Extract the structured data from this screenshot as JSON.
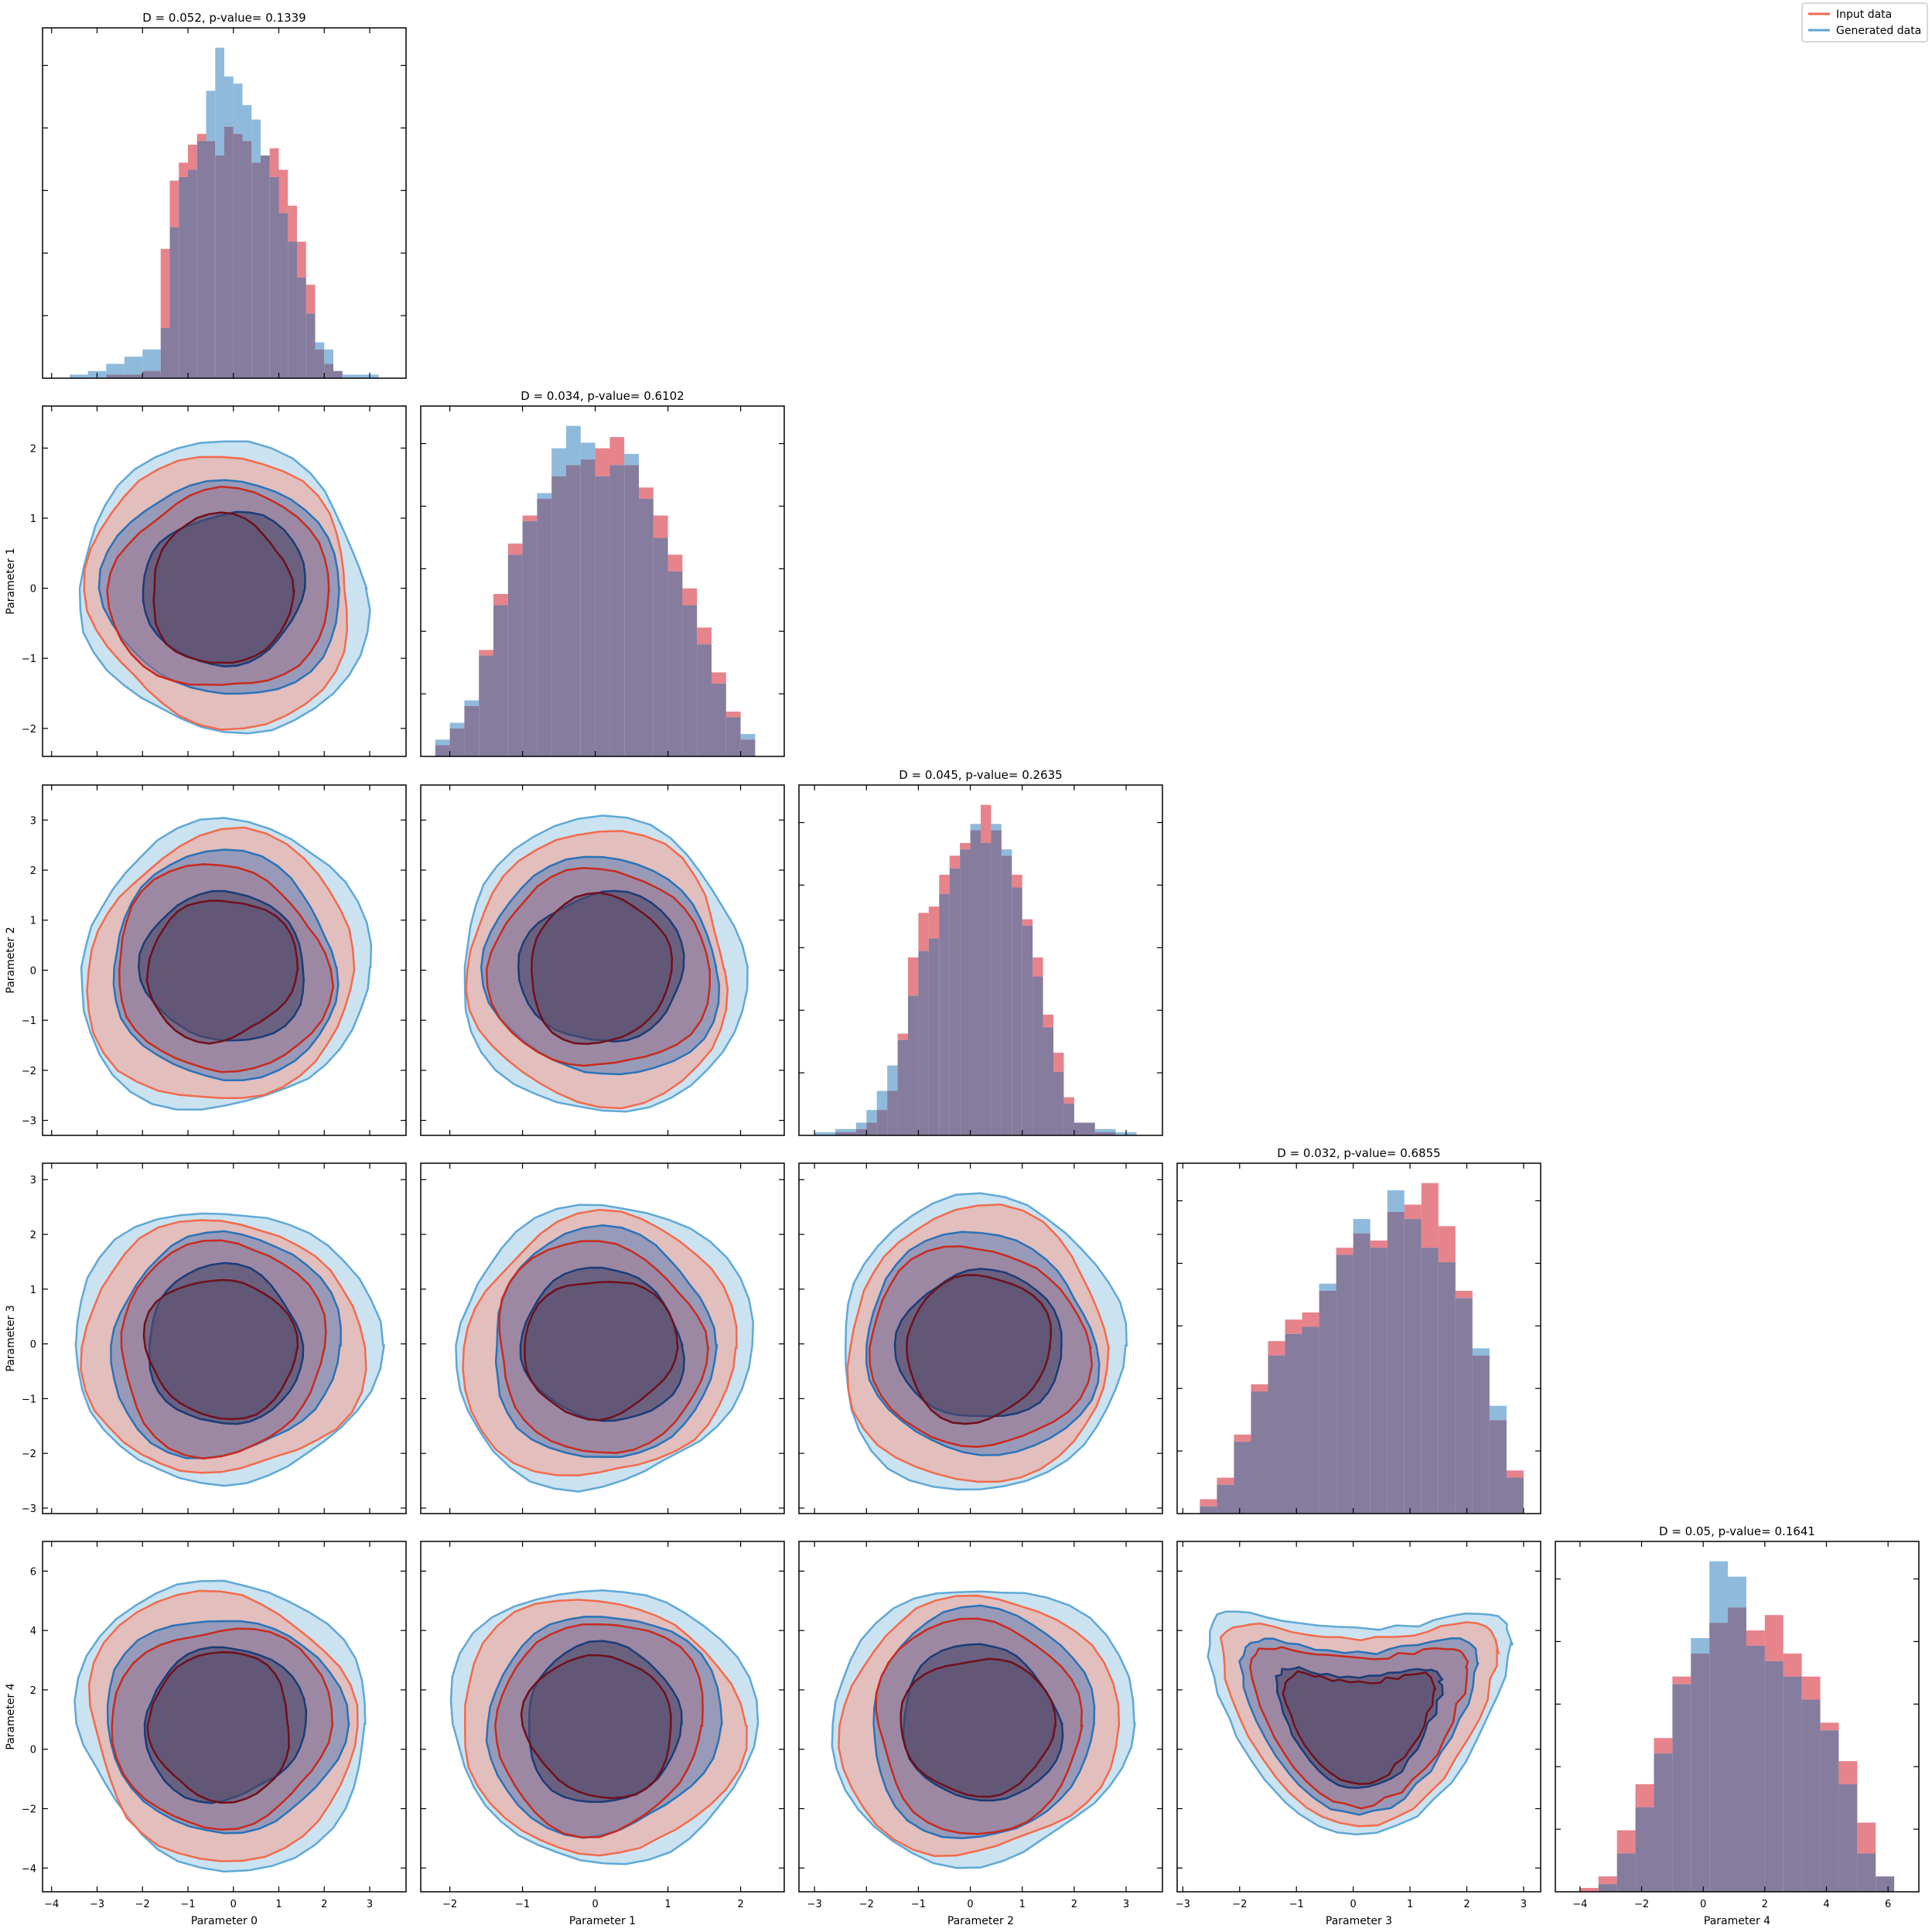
{
  "legend": [
    {
      "label": "Input data",
      "color": "#ee6a50"
    },
    {
      "label": "Generated data",
      "color": "#5fa4d4"
    }
  ],
  "colors": {
    "input_fill": "#e0606a",
    "generated_fill": "#6fa6d2",
    "overlap_fill": "#857c9e",
    "input_outer_line": "#f26b4c",
    "input_mid_line": "#c82a1e",
    "input_inner_line": "#70101c",
    "generated_outer_line": "#5fa8d6",
    "generated_mid_line": "#2a72b8",
    "generated_inner_line": "#1a3c78",
    "generated_level_fills": [
      "#b9d8ec",
      "#7e8fb8",
      "#5a5475"
    ],
    "input_level_fills": [
      "#f6a090",
      "#a07890",
      "#5b5070"
    ]
  },
  "chart_data": {
    "type": "corner",
    "parameters": [
      "Parameter 0",
      "Parameter 1",
      "Parameter 2",
      "Parameter 3",
      "Parameter 4"
    ],
    "ranges": [
      [
        -4.2,
        3.8
      ],
      [
        -2.4,
        2.6
      ],
      [
        -3.3,
        3.7
      ],
      [
        -3.1,
        3.3
      ],
      [
        -4.8,
        7.0
      ]
    ],
    "ticks": [
      [
        -4,
        -3,
        -2,
        -1,
        0,
        1,
        2,
        3
      ],
      [
        -2,
        -1,
        0,
        1,
        2
      ],
      [
        -3,
        -2,
        -1,
        0,
        1,
        2,
        3
      ],
      [
        -3,
        -2,
        -1,
        0,
        1,
        2,
        3
      ],
      [
        -4,
        -2,
        0,
        2,
        4,
        6
      ]
    ],
    "tick_labels": [
      [
        "−4",
        "−3",
        "−2",
        "−1",
        "0",
        "1",
        "2",
        "3"
      ],
      [
        "−2",
        "−1",
        "0",
        "1",
        "2"
      ],
      [
        "−3",
        "−2",
        "−1",
        "0",
        "1",
        "2",
        "3"
      ],
      [
        "−3",
        "−2",
        "−1",
        "0",
        "1",
        "2",
        "3"
      ],
      [
        "−4",
        "−2",
        "0",
        "2",
        "4",
        "6"
      ]
    ],
    "diagonal_titles": [
      "D = 0.052, p-value= 0.1339",
      "D = 0.034, p-value= 0.6102",
      "D = 0.045, p-value= 0.2635",
      "D = 0.032, p-value= 0.6855",
      "D = 0.05, p-value= 0.1641"
    ],
    "histograms": [
      {
        "bin_edges": [
          -4.0,
          -3.6,
          -3.2,
          -2.8,
          -2.4,
          -2.0,
          -1.6,
          -1.4,
          -1.2,
          -1.0,
          -0.8,
          -0.6,
          -0.4,
          -0.2,
          0.0,
          0.2,
          0.4,
          0.6,
          0.8,
          1.0,
          1.2,
          1.4,
          1.6,
          1.8,
          2.0,
          2.2,
          2.4,
          2.8,
          3.2
        ],
        "input": [
          0,
          0,
          0,
          1,
          1,
          2,
          36,
          55,
          60,
          65,
          68,
          66,
          62,
          70,
          68,
          66,
          60,
          62,
          64,
          58,
          48,
          38,
          26,
          8,
          4,
          2,
          0,
          0
        ],
        "generated": [
          0,
          1,
          2,
          4,
          6,
          8,
          14,
          42,
          56,
          58,
          66,
          80,
          92,
          84,
          82,
          76,
          72,
          62,
          56,
          46,
          38,
          28,
          18,
          10,
          8,
          2,
          1,
          1
        ]
      },
      {
        "bin_edges": [
          -2.2,
          -2.0,
          -1.8,
          -1.6,
          -1.4,
          -1.2,
          -1.0,
          -0.8,
          -0.6,
          -0.4,
          -0.2,
          0.0,
          0.2,
          0.4,
          0.6,
          0.8,
          1.0,
          1.2,
          1.4,
          1.6,
          1.8,
          2.0,
          2.2
        ],
        "input": [
          4,
          10,
          18,
          38,
          58,
          76,
          86,
          92,
          100,
          104,
          106,
          110,
          114,
          104,
          96,
          86,
          72,
          60,
          46,
          30,
          16,
          6
        ],
        "generated": [
          6,
          12,
          20,
          36,
          54,
          72,
          84,
          94,
          110,
          118,
          112,
          100,
          104,
          108,
          92,
          78,
          66,
          54,
          40,
          26,
          14,
          8
        ]
      },
      {
        "bin_edges": [
          -3.0,
          -2.6,
          -2.2,
          -2.0,
          -1.8,
          -1.6,
          -1.4,
          -1.2,
          -1.0,
          -0.8,
          -0.6,
          -0.4,
          -0.2,
          0.0,
          0.2,
          0.4,
          0.6,
          0.8,
          1.0,
          1.2,
          1.4,
          1.6,
          1.8,
          2.0,
          2.4,
          2.8,
          3.2
        ],
        "input": [
          0,
          1,
          2,
          4,
          8,
          14,
          32,
          56,
          70,
          72,
          82,
          88,
          92,
          96,
          104,
          96,
          88,
          82,
          68,
          56,
          38,
          26,
          12,
          4,
          1,
          0
        ],
        "generated": [
          1,
          2,
          4,
          8,
          14,
          22,
          30,
          44,
          58,
          62,
          76,
          84,
          90,
          98,
          92,
          98,
          90,
          78,
          66,
          50,
          34,
          20,
          10,
          4,
          2,
          1
        ]
      },
      {
        "bin_edges": [
          -2.7,
          -2.4,
          -2.1,
          -1.8,
          -1.5,
          -1.2,
          -0.9,
          -0.6,
          -0.3,
          0.0,
          0.3,
          0.6,
          0.9,
          1.2,
          1.5,
          1.8,
          2.1,
          2.4,
          2.7,
          3.0
        ],
        "input": [
          4,
          10,
          22,
          36,
          48,
          54,
          56,
          62,
          74,
          78,
          76,
          84,
          86,
          92,
          80,
          62,
          44,
          26,
          12
        ],
        "generated": [
          2,
          8,
          20,
          34,
          44,
          50,
          52,
          64,
          72,
          82,
          74,
          90,
          82,
          74,
          70,
          60,
          46,
          30,
          10
        ]
      },
      {
        "bin_edges": [
          -4.0,
          -3.4,
          -2.8,
          -2.2,
          -1.6,
          -1.0,
          -0.4,
          0.2,
          0.8,
          1.4,
          2.0,
          2.6,
          3.2,
          3.8,
          4.4,
          5.0,
          5.6,
          6.2
        ],
        "input": [
          1,
          4,
          16,
          28,
          40,
          56,
          62,
          70,
          74,
          68,
          72,
          62,
          56,
          44,
          34,
          18,
          4
        ],
        "generated": [
          0,
          2,
          10,
          22,
          36,
          54,
          66,
          86,
          82,
          64,
          60,
          56,
          50,
          42,
          28,
          10,
          4
        ]
      }
    ]
  }
}
